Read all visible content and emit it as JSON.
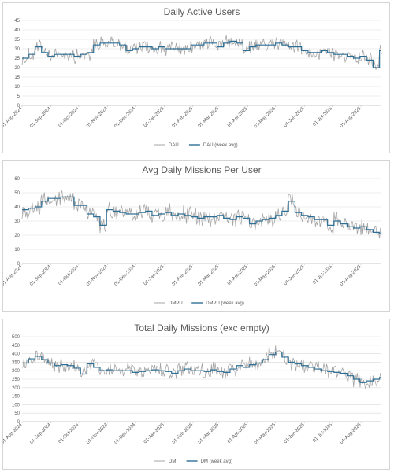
{
  "chart_data": [
    {
      "type": "line",
      "title": "Daily Active Users",
      "xlabel": "",
      "ylabel": "",
      "ylim": [
        0,
        45
      ],
      "yticks": [
        0,
        5,
        10,
        15,
        20,
        25,
        30,
        35,
        40,
        45
      ],
      "x_start": "2024-08-01",
      "x_end": "2025-08-23",
      "x_tick_labels": [
        "01-Aug-2024",
        "01-Sep-2024",
        "01-Oct-2024",
        "01-Nov-2024",
        "01-Dec-2024",
        "01-Jan-2025",
        "01-Feb-2025",
        "01-Mar-2025",
        "01-Apr-2025",
        "01-May-2025",
        "01-Jun-2025",
        "01-Jul-2025",
        "01-Aug-2025"
      ],
      "grid": "horizontal",
      "legend_position": "bottom",
      "series": [
        {
          "name": "DAU",
          "color": "#a6a6a6",
          "style": "daily"
        },
        {
          "name": "DAU (week avg)",
          "color": "#2e6f95",
          "style": "weekly"
        }
      ],
      "weekly_values": [
        25,
        27,
        31,
        28,
        26,
        27,
        27,
        27,
        26,
        27,
        28,
        32,
        33,
        33,
        33,
        32,
        29,
        30,
        31,
        31,
        30,
        31,
        30,
        30,
        30,
        30,
        32,
        32,
        33,
        33,
        31,
        33,
        34,
        33,
        29,
        31,
        32,
        32,
        32,
        33,
        32,
        31,
        31,
        29,
        28,
        28,
        29,
        28,
        27,
        27,
        26,
        25,
        26,
        24,
        20,
        29,
        29,
        29,
        29,
        28,
        28,
        29,
        28,
        27,
        26,
        26,
        22,
        25,
        28
      ],
      "daily_amplitude": 3.2
    },
    {
      "type": "line",
      "title": "Avg Daily Missions Per User",
      "xlabel": "",
      "ylabel": "",
      "ylim": [
        0,
        60
      ],
      "yticks": [
        0,
        10,
        20,
        30,
        40,
        50,
        60
      ],
      "x_start": "2024-08-01",
      "x_end": "2025-08-23",
      "x_tick_labels": [
        "01-Aug-2024",
        "01-Sep-2024",
        "01-Oct-2024",
        "01-Nov-2024",
        "01-Dec-2024",
        "01-Jan-2025",
        "01-Feb-2025",
        "01-Mar-2025",
        "01-Apr-2025",
        "01-May-2025",
        "01-Jun-2025",
        "01-Jul-2025",
        "01-Aug-2025"
      ],
      "grid": "horizontal",
      "legend_position": "bottom",
      "series": [
        {
          "name": "DMPU",
          "color": "#a6a6a6",
          "style": "daily"
        },
        {
          "name": "DMPU (week avg)",
          "color": "#2e6f95",
          "style": "weekly"
        }
      ],
      "weekly_values": [
        38,
        39,
        40,
        44,
        46,
        46,
        47,
        47,
        41,
        41,
        35,
        33,
        27,
        38,
        37,
        36,
        35,
        35,
        36,
        37,
        34,
        35,
        36,
        34,
        35,
        34,
        33,
        32,
        33,
        33,
        34,
        32,
        31,
        33,
        32,
        28,
        30,
        31,
        32,
        34,
        37,
        44,
        36,
        34,
        33,
        31,
        31,
        27,
        30,
        28,
        26,
        25,
        26,
        24,
        22,
        21,
        26,
        24,
        22,
        25,
        24,
        23,
        25,
        23,
        26,
        26,
        24,
        25,
        25
      ],
      "daily_amplitude": 5.0
    },
    {
      "type": "line",
      "title": "Total Daily Missions (exc empty)",
      "xlabel": "",
      "ylabel": "",
      "ylim": [
        0,
        500
      ],
      "yticks": [
        0,
        50,
        100,
        150,
        200,
        250,
        300,
        350,
        400,
        450,
        500
      ],
      "x_start": "2024-08-01",
      "x_end": "2025-08-23",
      "x_tick_labels": [
        "01-Aug-2024",
        "01-Sep-2024",
        "01-Oct-2024",
        "01-Nov-2024",
        "01-Dec-2024",
        "01-Jan-2025",
        "01-Feb-2025",
        "01-Mar-2025",
        "01-Apr-2025",
        "01-May-2025",
        "01-Jun-2025",
        "01-Jul-2025",
        "01-Aug-2025"
      ],
      "grid": "horizontal",
      "legend_position": "bottom",
      "series": [
        {
          "name": "DM",
          "color": "#a6a6a6",
          "style": "daily"
        },
        {
          "name": "DM (week avg)",
          "color": "#2e6f95",
          "style": "weekly"
        }
      ],
      "weekly_values": [
        345,
        370,
        385,
        365,
        345,
        330,
        335,
        330,
        315,
        280,
        340,
        320,
        300,
        305,
        300,
        300,
        300,
        290,
        295,
        300,
        305,
        300,
        295,
        285,
        300,
        310,
        300,
        300,
        295,
        305,
        295,
        290,
        310,
        330,
        320,
        335,
        345,
        365,
        395,
        410,
        380,
        350,
        340,
        330,
        320,
        310,
        300,
        295,
        290,
        285,
        270,
        250,
        230,
        240,
        250,
        260,
        260,
        260,
        255,
        255,
        250,
        255,
        255,
        250,
        255,
        255,
        255,
        250,
        255
      ],
      "daily_amplitude": 38
    }
  ]
}
